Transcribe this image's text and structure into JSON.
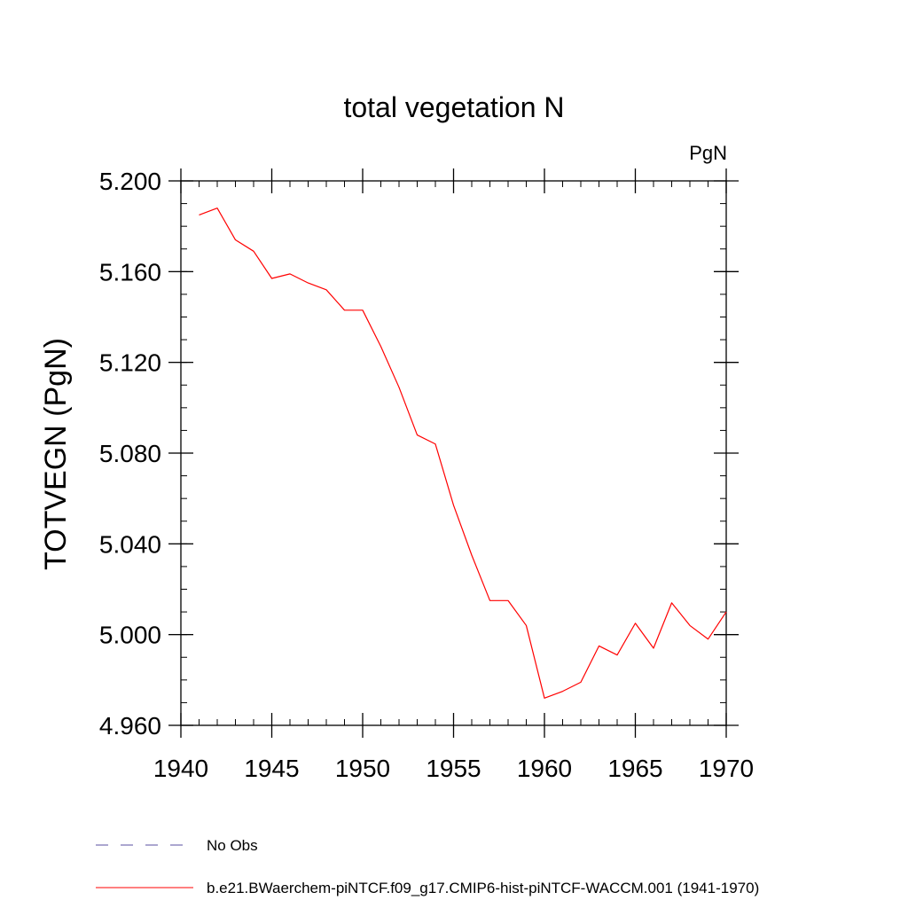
{
  "chart_data": {
    "type": "line",
    "title": "total vegetation N",
    "units_label": "PgN",
    "xlabel": "",
    "ylabel": "TOTVEGN  (PgN)",
    "xlim": [
      1940,
      1970
    ],
    "ylim": [
      4.96,
      5.2
    ],
    "x_ticks": [
      1940,
      1945,
      1950,
      1955,
      1960,
      1965,
      1970
    ],
    "x_tick_labels": [
      "1940",
      "1945",
      "1950",
      "1955",
      "1960",
      "1965",
      "1970"
    ],
    "y_ticks": [
      4.96,
      5.0,
      5.04,
      5.08,
      5.12,
      5.16,
      5.2
    ],
    "y_tick_labels": [
      "4.960",
      "5.000",
      "5.040",
      "5.080",
      "5.120",
      "5.160",
      "5.200"
    ],
    "y_minor_step": 0.01,
    "x_minor_step": 1,
    "grid": false,
    "legend_position": "bottom",
    "series": [
      {
        "name": "b.e21.BWaerchem-piNTCF.f09_g17.CMIP6-hist-piNTCF-WACCM.001 (1941-1970)",
        "color": "#ff0000",
        "style": "solid",
        "x": [
          1941,
          1942,
          1943,
          1944,
          1945,
          1946,
          1947,
          1948,
          1949,
          1950,
          1951,
          1952,
          1953,
          1954,
          1955,
          1956,
          1957,
          1958,
          1959,
          1960,
          1961,
          1962,
          1963,
          1964,
          1965,
          1966,
          1967,
          1968,
          1969,
          1970
        ],
        "values": [
          5.185,
          5.188,
          5.174,
          5.169,
          5.157,
          5.159,
          5.155,
          5.152,
          5.143,
          5.143,
          5.127,
          5.109,
          5.088,
          5.084,
          5.057,
          5.035,
          5.015,
          5.015,
          5.004,
          4.972,
          4.975,
          4.979,
          4.995,
          4.991,
          5.005,
          4.994,
          5.014,
          5.004,
          4.998,
          5.01
        ]
      }
    ],
    "legend": [
      {
        "label": "No Obs",
        "color": "#5a4fa0",
        "style": "dashed"
      },
      {
        "label": "b.e21.BWaerchem-piNTCF.f09_g17.CMIP6-hist-piNTCF-WACCM.001 (1941-1970)",
        "color": "#ff0000",
        "style": "solid"
      }
    ]
  }
}
